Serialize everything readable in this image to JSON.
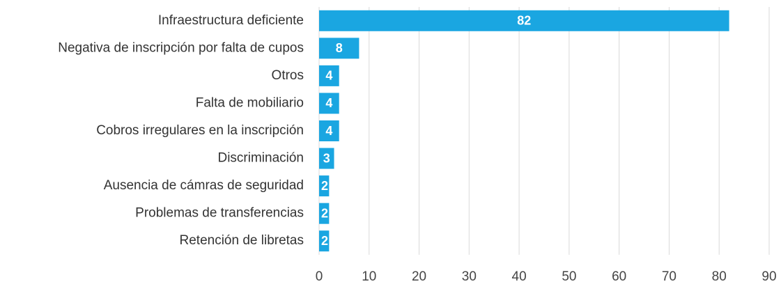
{
  "chart_data": {
    "type": "barh",
    "categories": [
      "Infraestructura deficiente",
      "Negativa de inscripción por falta de cupos",
      "Otros",
      "Falta de mobiliario",
      "Cobros irregulares en la inscripción",
      "Discriminación",
      "Ausencia de cámras de seguridad",
      "Problemas de transferencias",
      "Retención de libretas"
    ],
    "values": [
      82,
      8,
      4,
      4,
      4,
      3,
      2,
      2,
      2
    ],
    "color": "#1aa6e1",
    "xlim": [
      0,
      90
    ],
    "xticks": [
      0,
      10,
      20,
      30,
      40,
      50,
      60,
      70,
      80,
      90
    ],
    "grid": true
  }
}
